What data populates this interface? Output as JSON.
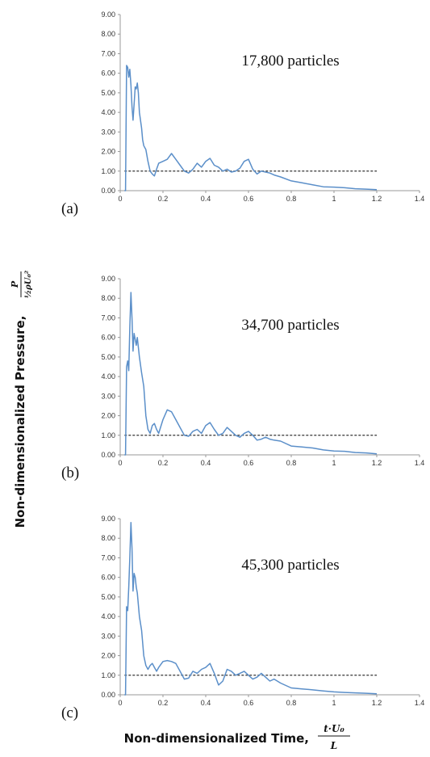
{
  "chart_data": {
    "type": "line",
    "panel_count": 3,
    "y_axis_title": "Non-dimensionalized Pressure,",
    "y_axis_fraction": {
      "numerator": "P",
      "denominator": "½ρU₀²"
    },
    "x_axis_title": "Non-dimensionalized Time,",
    "x_axis_fraction": {
      "numerator": "t·U₀",
      "denominator": "L"
    },
    "line_color": "#5b8fc9",
    "reference_line_color": "#333333",
    "panels": [
      {
        "label": "(a)",
        "annotation": "17,800 particles",
        "xlim": [
          0,
          1.4
        ],
        "ylim": [
          0,
          9
        ],
        "x_ticks": [
          "0",
          "0.2",
          "0.4",
          "0.6",
          "0.8",
          "1",
          "1.2",
          "1.4"
        ],
        "y_ticks": [
          "0.00",
          "1.00",
          "2.00",
          "3.00",
          "4.00",
          "5.00",
          "6.00",
          "7.00",
          "8.00",
          "9.00"
        ],
        "reference_value": 1.0,
        "reference_xlim": [
          0.02,
          1.2
        ],
        "series": [
          {
            "x": [
              0.02,
              0.025,
              0.03,
              0.035,
              0.04,
              0.045,
              0.05,
              0.055,
              0.06,
              0.065,
              0.07,
              0.075,
              0.08,
              0.085,
              0.09,
              0.1,
              0.105,
              0.11,
              0.12,
              0.13,
              0.14,
              0.15,
              0.16,
              0.17,
              0.18,
              0.2,
              0.22,
              0.24,
              0.26,
              0.28,
              0.3,
              0.32,
              0.34,
              0.36,
              0.38,
              0.4,
              0.42,
              0.44,
              0.46,
              0.48,
              0.5,
              0.52,
              0.54,
              0.56,
              0.58,
              0.6,
              0.62,
              0.64,
              0.66,
              0.68,
              0.7,
              0.72,
              0.75,
              0.8,
              0.85,
              0.9,
              0.95,
              1.0,
              1.05,
              1.1,
              1.15,
              1.2
            ],
            "y": [
              0,
              0,
              6.4,
              6.3,
              5.8,
              6.2,
              5.4,
              4.3,
              3.6,
              4.4,
              5.3,
              5.2,
              5.5,
              5.0,
              4.0,
              3.2,
              2.6,
              2.3,
              2.1,
              1.5,
              1.0,
              0.85,
              0.75,
              1.1,
              1.4,
              1.5,
              1.6,
              1.9,
              1.6,
              1.3,
              1.0,
              0.9,
              1.1,
              1.4,
              1.2,
              1.5,
              1.65,
              1.3,
              1.2,
              1.0,
              1.1,
              0.95,
              1.0,
              1.15,
              1.5,
              1.6,
              1.1,
              0.85,
              1.0,
              0.95,
              0.9,
              0.8,
              0.7,
              0.5,
              0.4,
              0.3,
              0.2,
              0.18,
              0.15,
              0.1,
              0.08,
              0.05
            ]
          }
        ]
      },
      {
        "label": "(b)",
        "annotation": "34,700 particles",
        "xlim": [
          0,
          1.4
        ],
        "ylim": [
          0,
          9
        ],
        "x_ticks": [
          "0",
          "0.2",
          "0.4",
          "0.6",
          "0.8",
          "1",
          "1.2",
          "1.4"
        ],
        "y_ticks": [
          "0.00",
          "1.00",
          "2.00",
          "3.00",
          "4.00",
          "5.00",
          "6.00",
          "7.00",
          "8.00",
          "9.00"
        ],
        "reference_value": 1.0,
        "reference_xlim": [
          0.02,
          1.2
        ],
        "series": [
          {
            "x": [
              0.02,
              0.025,
              0.03,
              0.035,
              0.04,
              0.045,
              0.05,
              0.055,
              0.06,
              0.065,
              0.07,
              0.075,
              0.08,
              0.09,
              0.1,
              0.11,
              0.12,
              0.13,
              0.14,
              0.15,
              0.16,
              0.17,
              0.18,
              0.2,
              0.22,
              0.24,
              0.26,
              0.28,
              0.3,
              0.32,
              0.34,
              0.36,
              0.38,
              0.4,
              0.42,
              0.44,
              0.46,
              0.48,
              0.5,
              0.52,
              0.54,
              0.56,
              0.58,
              0.6,
              0.62,
              0.64,
              0.66,
              0.68,
              0.7,
              0.72,
              0.75,
              0.8,
              0.85,
              0.9,
              0.95,
              1.0,
              1.05,
              1.1,
              1.15,
              1.2
            ],
            "y": [
              0,
              0,
              4.5,
              4.8,
              4.3,
              6.5,
              8.3,
              7.0,
              5.3,
              6.2,
              5.9,
              5.6,
              6.0,
              5.0,
              4.2,
              3.5,
              2.0,
              1.3,
              1.1,
              1.5,
              1.6,
              1.3,
              1.1,
              1.8,
              2.3,
              2.2,
              1.8,
              1.4,
              1.0,
              0.95,
              1.2,
              1.3,
              1.1,
              1.5,
              1.65,
              1.3,
              1.0,
              1.1,
              1.4,
              1.2,
              1.0,
              0.9,
              1.1,
              1.2,
              1.0,
              0.75,
              0.8,
              0.9,
              0.8,
              0.75,
              0.7,
              0.45,
              0.4,
              0.35,
              0.25,
              0.2,
              0.18,
              0.12,
              0.1,
              0.05
            ]
          }
        ]
      },
      {
        "label": "(c)",
        "annotation": "45,300 particles",
        "xlim": [
          0,
          1.4
        ],
        "ylim": [
          0,
          9
        ],
        "x_ticks": [
          "0",
          "0.2",
          "0.4",
          "0.6",
          "0.8",
          "1",
          "1.2",
          "1.4"
        ],
        "y_ticks": [
          "0.00",
          "1.00",
          "2.00",
          "3.00",
          "4.00",
          "5.00",
          "6.00",
          "7.00",
          "8.00",
          "9.00"
        ],
        "reference_value": 1.0,
        "reference_xlim": [
          0.02,
          1.2
        ],
        "series": [
          {
            "x": [
              0.02,
              0.025,
              0.03,
              0.035,
              0.04,
              0.045,
              0.05,
              0.055,
              0.06,
              0.065,
              0.07,
              0.075,
              0.08,
              0.09,
              0.1,
              0.11,
              0.12,
              0.13,
              0.14,
              0.15,
              0.16,
              0.17,
              0.18,
              0.2,
              0.22,
              0.24,
              0.26,
              0.28,
              0.3,
              0.32,
              0.34,
              0.36,
              0.38,
              0.4,
              0.42,
              0.44,
              0.46,
              0.48,
              0.5,
              0.52,
              0.54,
              0.56,
              0.58,
              0.6,
              0.62,
              0.64,
              0.66,
              0.68,
              0.7,
              0.72,
              0.75,
              0.8,
              0.85,
              0.9,
              0.95,
              1.0,
              1.05,
              1.1,
              1.15,
              1.2
            ],
            "y": [
              0,
              0,
              4.5,
              4.3,
              5.5,
              7.0,
              8.8,
              7.5,
              5.3,
              6.2,
              6.0,
              5.5,
              5.2,
              4.0,
              3.3,
              2.0,
              1.5,
              1.3,
              1.5,
              1.6,
              1.4,
              1.2,
              1.4,
              1.7,
              1.75,
              1.7,
              1.6,
              1.2,
              0.8,
              0.85,
              1.2,
              1.1,
              1.3,
              1.4,
              1.6,
              1.1,
              0.5,
              0.7,
              1.3,
              1.2,
              1.0,
              1.1,
              1.2,
              1.0,
              0.8,
              0.9,
              1.1,
              0.9,
              0.7,
              0.8,
              0.6,
              0.35,
              0.3,
              0.25,
              0.2,
              0.15,
              0.12,
              0.1,
              0.08,
              0.05
            ]
          }
        ]
      }
    ]
  }
}
